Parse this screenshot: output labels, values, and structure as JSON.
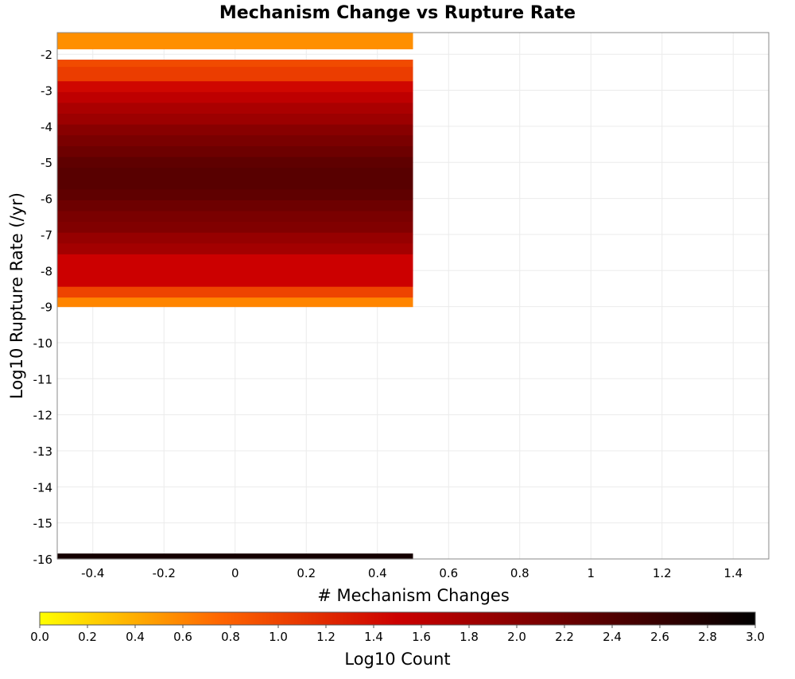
{
  "chart_data": {
    "type": "heatmap",
    "title": "Mechanism Change vs Rupture Rate",
    "xlabel": "# Mechanism Changes",
    "ylabel": "Log10 Rupture Rate (/yr)",
    "xlim": [
      -0.5,
      1.5
    ],
    "ylim": [
      -16,
      -1.4
    ],
    "x_ticks": [
      "-0.4",
      "-0.2",
      "0",
      "0.2",
      "0.4",
      "0.6",
      "0.8",
      "1",
      "1.2",
      "1.4"
    ],
    "y_ticks": [
      "-2",
      "-3",
      "-4",
      "-5",
      "-6",
      "-7",
      "-8",
      "-9",
      "-10",
      "-11",
      "-12",
      "-13",
      "-14",
      "-15",
      "-16"
    ],
    "grid": true,
    "colorbar": {
      "label": "Log10 Count",
      "range": [
        0.0,
        3.0
      ],
      "ticks": [
        "0.0",
        "0.2",
        "0.4",
        "0.6",
        "0.8",
        "1.0",
        "1.2",
        "1.4",
        "1.6",
        "1.8",
        "2.0",
        "2.2",
        "2.4",
        "2.6",
        "2.8",
        "3.0"
      ],
      "colors": [
        "#ffff00",
        "#ff6600",
        "#cc0000",
        "#660000",
        "#000000"
      ]
    },
    "cells": [
      {
        "x": 0,
        "y_low": -1.85,
        "y_high": -1.4,
        "log10_count": 0.55
      },
      {
        "x": 0,
        "y_low": -2.35,
        "y_high": -2.15,
        "log10_count": 0.95
      },
      {
        "x": 0,
        "y_low": -2.75,
        "y_high": -2.35,
        "log10_count": 1.05
      },
      {
        "x": 0,
        "y_low": -3.05,
        "y_high": -2.75,
        "log10_count": 1.45
      },
      {
        "x": 0,
        "y_low": -3.35,
        "y_high": -3.05,
        "log10_count": 1.6
      },
      {
        "x": 0,
        "y_low": -3.65,
        "y_high": -3.35,
        "log10_count": 1.75
      },
      {
        "x": 0,
        "y_low": -3.95,
        "y_high": -3.65,
        "log10_count": 1.85
      },
      {
        "x": 0,
        "y_low": -4.25,
        "y_high": -3.95,
        "log10_count": 2.0
      },
      {
        "x": 0,
        "y_low": -4.55,
        "y_high": -4.25,
        "log10_count": 2.1
      },
      {
        "x": 0,
        "y_low": -4.85,
        "y_high": -4.55,
        "log10_count": 2.2
      },
      {
        "x": 0,
        "y_low": -5.15,
        "y_high": -4.85,
        "log10_count": 2.3
      },
      {
        "x": 0,
        "y_low": -5.75,
        "y_high": -5.15,
        "log10_count": 2.35
      },
      {
        "x": 0,
        "y_low": -6.05,
        "y_high": -5.75,
        "log10_count": 2.3
      },
      {
        "x": 0,
        "y_low": -6.35,
        "y_high": -6.05,
        "log10_count": 2.2
      },
      {
        "x": 0,
        "y_low": -6.65,
        "y_high": -6.35,
        "log10_count": 2.1
      },
      {
        "x": 0,
        "y_low": -6.95,
        "y_high": -6.65,
        "log10_count": 2.05
      },
      {
        "x": 0,
        "y_low": -7.25,
        "y_high": -6.95,
        "log10_count": 1.9
      },
      {
        "x": 0,
        "y_low": -7.55,
        "y_high": -7.25,
        "log10_count": 1.8
      },
      {
        "x": 0,
        "y_low": -8.45,
        "y_high": -7.55,
        "log10_count": 1.5
      },
      {
        "x": 0,
        "y_low": -8.75,
        "y_high": -8.45,
        "log10_count": 1.0
      },
      {
        "x": 0,
        "y_low": -9.0,
        "y_high": -8.75,
        "log10_count": 0.6
      },
      {
        "x": 0,
        "y_low": -16.0,
        "y_high": -15.85,
        "log10_count": 2.85
      }
    ]
  }
}
